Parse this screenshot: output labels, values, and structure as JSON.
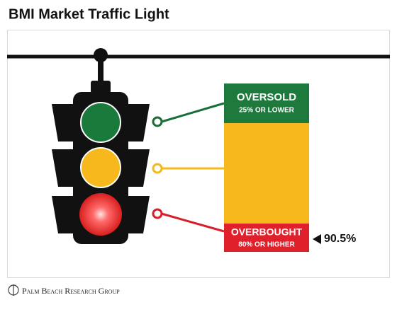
{
  "title": "BMI Market Traffic Light",
  "zones": [
    {
      "label": "OVERSOLD",
      "sublabel": "25% OR LOWER"
    },
    {
      "label": "OVERBOUGHT",
      "sublabel": "80% OR HIGHER"
    }
  ],
  "indicator": "90.5%",
  "footer": "Palm Beach Research Group"
}
